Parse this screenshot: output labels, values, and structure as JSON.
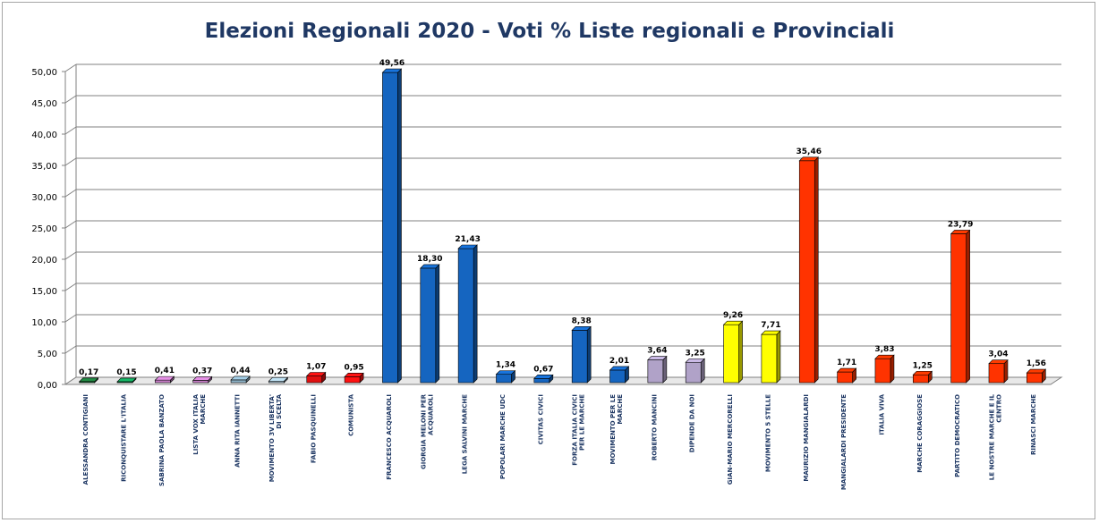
{
  "chart_data": {
    "type": "bar",
    "title": "Elezioni Regionali 2020 - Voti % Liste regionali e Provinciali",
    "xlabel": "",
    "ylabel": "",
    "ylim": [
      0,
      50
    ],
    "yticks": [
      "0,00",
      "5,00",
      "10,00",
      "15,00",
      "20,00",
      "25,00",
      "30,00",
      "35,00",
      "40,00",
      "45,00",
      "50,00"
    ],
    "grid": true,
    "legend": "none",
    "categories": [
      "ALESSANDRA CONTIGIANI",
      "RICONQUISTARE L'ITALIA",
      "SABRINA PAOLA BANZATO",
      "LISTA VOX ITALIA MARCHE",
      "ANNA RITA IANNETTI",
      "MOVIMENTO 3V LIBERTA' DI SCELTA",
      "FABIO PASQUINELLI",
      "COMUNISTA",
      "FRANCESCO ACQUAROLI",
      "GIORGIA MELONI PER ACQUAROLI",
      "LEGA SALVINI MARCHE",
      "POPOLARI MARCHE UDC",
      "CIVITAS CIVICI",
      "FORZA ITALIA CIVICI PER LE MARCHE",
      "MOVIMENTO PER LE MARCHE",
      "ROBERTO MANCINI",
      "DIPENDE DA NOI",
      "GIAN-MARIO MERCORELLI",
      "MOVIMENTO 5 STELLE",
      "MAURIZIO MANGIALARDI",
      "MANGIALARDI PRESIDENTE",
      "ITALIA VIVA",
      "MARCHE CORAGGIOSE",
      "PARTITO DEMOCRATICO",
      "LE NOSTRE MARCHE E IL CENTRO",
      "RINASCI MARCHE"
    ],
    "values": [
      0.17,
      0.15,
      0.41,
      0.37,
      0.44,
      0.25,
      1.07,
      0.95,
      49.56,
      18.3,
      21.43,
      1.34,
      0.67,
      8.38,
      2.01,
      3.64,
      3.25,
      9.26,
      7.71,
      35.46,
      1.71,
      3.83,
      1.25,
      23.79,
      3.04,
      1.56
    ],
    "value_labels": [
      "0,17",
      "0,15",
      "0,41",
      "0,37",
      "0,44",
      "0,25",
      "1,07",
      "0,95",
      "49,56",
      "18,30",
      "21,43",
      "1,34",
      "0,67",
      "8,38",
      "2,01",
      "3,64",
      "3,25",
      "9,26",
      "7,71",
      "35,46",
      "1,71",
      "3,83",
      "1,25",
      "23,79",
      "3,04",
      "1,56"
    ],
    "colors": [
      "#1e7a3c",
      "#14a05a",
      "#c77dc7",
      "#c77dc7",
      "#8fb4c9",
      "#a9c6d6",
      "#e01010",
      "#ff1010",
      "#1565c0",
      "#1565c0",
      "#1565c0",
      "#1565c0",
      "#1565c0",
      "#1565c0",
      "#1565c0",
      "#b0a2c8",
      "#b0a2c8",
      "#ffff00",
      "#ffff00",
      "#ff3300",
      "#ff3300",
      "#ff3300",
      "#ff3300",
      "#ff3300",
      "#ff3300",
      "#ff3300"
    ]
  }
}
